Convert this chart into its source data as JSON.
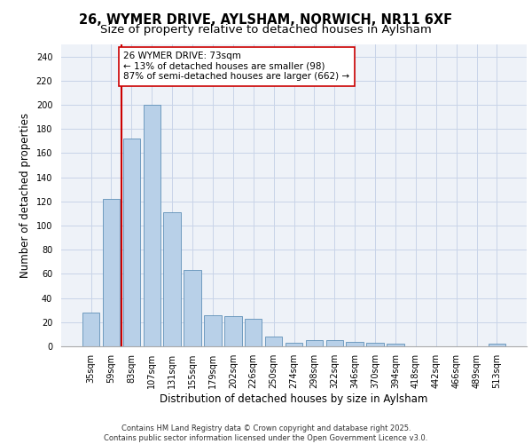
{
  "title_line1": "26, WYMER DRIVE, AYLSHAM, NORWICH, NR11 6XF",
  "title_line2": "Size of property relative to detached houses in Aylsham",
  "xlabel": "Distribution of detached houses by size in Aylsham",
  "ylabel": "Number of detached properties",
  "bar_labels": [
    "35sqm",
    "59sqm",
    "83sqm",
    "107sqm",
    "131sqm",
    "155sqm",
    "179sqm",
    "202sqm",
    "226sqm",
    "250sqm",
    "274sqm",
    "298sqm",
    "322sqm",
    "346sqm",
    "370sqm",
    "394sqm",
    "418sqm",
    "442sqm",
    "466sqm",
    "489sqm",
    "513sqm"
  ],
  "bar_values": [
    28,
    122,
    172,
    200,
    111,
    63,
    26,
    25,
    23,
    8,
    3,
    5,
    5,
    4,
    3,
    2,
    0,
    0,
    0,
    0,
    2
  ],
  "bar_color": "#b8d0e8",
  "bar_edge_color": "#6090b8",
  "background_color": "#eef2f8",
  "grid_color": "#c8d4e8",
  "vline_x": 1.5,
  "vline_color": "#cc0000",
  "annotation_text": "26 WYMER DRIVE: 73sqm\n← 13% of detached houses are smaller (98)\n87% of semi-detached houses are larger (662) →",
  "annotation_box_color": "#ffffff",
  "annotation_box_edge": "#cc0000",
  "ylim": [
    0,
    250
  ],
  "yticks": [
    0,
    20,
    40,
    60,
    80,
    100,
    120,
    140,
    160,
    180,
    200,
    220,
    240
  ],
  "footer_text": "Contains HM Land Registry data © Crown copyright and database right 2025.\nContains public sector information licensed under the Open Government Licence v3.0.",
  "title_fontsize": 10.5,
  "subtitle_fontsize": 9.5,
  "axis_label_fontsize": 8.5,
  "tick_fontsize": 7,
  "annotation_fontsize": 7.5,
  "footer_fontsize": 6
}
